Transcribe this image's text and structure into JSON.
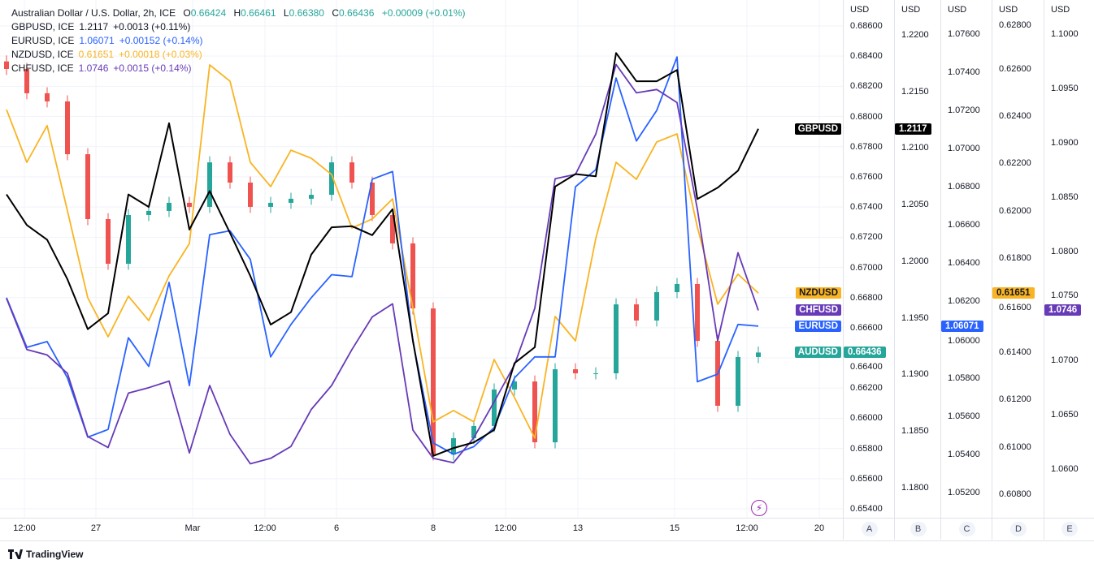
{
  "legend": {
    "main": {
      "title": "Australian Dollar / U.S. Dollar, 2h, ICE",
      "o_label": "O",
      "o": "0.66424",
      "h_label": "H",
      "h": "0.66461",
      "l_label": "L",
      "l": "0.66380",
      "c_label": "C",
      "c": "0.66436",
      "change": "+0.00009 (+0.01%)"
    },
    "overlays": [
      {
        "name": "GBPUSD, ICE",
        "value": "1.2117",
        "change": "+0.0013 (+0.11%)",
        "color": "#131722"
      },
      {
        "name": "EURUSD, ICE",
        "value": "1.06071",
        "change": "+0.00152 (+0.14%)",
        "color": "#2962ff"
      },
      {
        "name": "NZDUSD, ICE",
        "value": "0.61651",
        "change": "+0.00018 (+0.03%)",
        "color": "#f9b423"
      },
      {
        "name": "CHFUSD, ICE",
        "value": "1.0746",
        "change": "+0.0015 (+0.14%)",
        "color": "#673ab7"
      }
    ]
  },
  "colors": {
    "up": "#26a69a",
    "down": "#ef5350",
    "AUDUSD": "#26a69a",
    "GBPUSD": "#000000",
    "EURUSD": "#2962ff",
    "NZDUSD": "#f9b423",
    "CHFUSD": "#673ab7",
    "grid": "#f0f3fa"
  },
  "chart_data": {
    "type": "line",
    "main_series_type": "candlestick",
    "grid": true,
    "x_ticks": [
      "12:00",
      "27",
      "Mar",
      "12:00",
      "6",
      "8",
      "12:00",
      "13",
      "15",
      "12:00",
      "20"
    ],
    "axes": [
      {
        "id": "A",
        "unit": "USD",
        "series": "AUDUSD",
        "range": [
          0.65341,
          0.68772
        ],
        "ticks": [
          "0.68600",
          "0.68400",
          "0.68200",
          "0.68000",
          "0.67800",
          "0.67600",
          "0.67400",
          "0.67200",
          "0.67000",
          "0.66800",
          "0.66600",
          "0.66400",
          "0.66200",
          "0.66000",
          "0.65800",
          "0.65600",
          "0.65400"
        ]
      },
      {
        "id": "B",
        "unit": "USD",
        "series": "GBPUSD",
        "range": [
          1.17734,
          1.22308
        ],
        "ticks": [
          "1.2200",
          "1.2150",
          "1.2100",
          "1.2050",
          "1.2000",
          "1.1950",
          "1.1900",
          "1.1850",
          "1.1800"
        ]
      },
      {
        "id": "C",
        "unit": "USD",
        "series": "EURUSD",
        "range": [
          1.05068,
          1.07778
        ],
        "ticks": [
          "1.07600",
          "1.07400",
          "1.07200",
          "1.07000",
          "1.06800",
          "1.06600",
          "1.06400",
          "1.06200",
          "1.06000",
          "1.05800",
          "1.05600",
          "1.05400",
          "1.05200"
        ]
      },
      {
        "id": "D",
        "unit": "USD",
        "series": "NZDUSD",
        "range": [
          0.607,
          0.62892
        ],
        "ticks": [
          "0.62800",
          "0.62600",
          "0.62400",
          "0.62200",
          "0.62000",
          "0.61800",
          "0.61600",
          "0.61400",
          "0.61200",
          "0.61000",
          "0.60800"
        ]
      },
      {
        "id": "E",
        "unit": "USD",
        "series": "CHFUSD",
        "range": [
          1.05554,
          1.10313
        ],
        "ticks": [
          "1.1000",
          "1.0950",
          "1.0900",
          "1.0850",
          "1.0800",
          "1.0750",
          "1.0700",
          "1.0650",
          "1.0600"
        ]
      }
    ],
    "series": [
      {
        "name": "AUDUSD",
        "axis": "A",
        "last": "0.66436",
        "values": [
          0.68315,
          0.68154,
          0.681,
          0.6775,
          0.6732,
          0.67024,
          0.67347,
          0.67374,
          0.67428,
          0.67401,
          0.67696,
          0.67562,
          0.67401,
          0.67428,
          0.67455,
          0.67481,
          0.67696,
          0.67562,
          0.67347,
          0.67159,
          0.66728,
          0.6576,
          0.65868,
          0.65949,
          0.66191,
          0.66244,
          0.65841,
          0.66325,
          0.66298,
          0.66298,
          0.66755,
          0.66648,
          0.66836,
          0.6689,
          0.66513,
          0.66083,
          0.66406,
          0.66436
        ]
      },
      {
        "name": "GBPUSD",
        "axis": "B",
        "last": "1.2117",
        "values": [
          1.2059,
          1.2032,
          1.2019,
          1.1984,
          1.194,
          1.1954,
          1.2059,
          1.2048,
          1.2122,
          1.2028,
          1.2062,
          1.2025,
          1.1987,
          1.1944,
          1.1955,
          1.2006,
          1.203,
          1.2031,
          1.2023,
          1.2046,
          1.193,
          1.1828,
          1.1835,
          1.184,
          1.1851,
          1.191,
          1.1924,
          1.2066,
          1.2077,
          1.2075,
          1.2184,
          1.2159,
          1.2159,
          1.2169,
          1.2055,
          1.2065,
          1.208,
          1.2117
        ]
      },
      {
        "name": "EURUSD",
        "axis": "C",
        "last": "1.06071",
        "values": [
          1.0622,
          1.0596,
          1.0599,
          1.058,
          1.0549,
          1.0553,
          1.0601,
          1.0586,
          1.063,
          1.0576,
          1.0655,
          1.0657,
          1.0642,
          1.0591,
          1.0608,
          1.0622,
          1.0634,
          1.0633,
          1.0684,
          1.0688,
          1.0599,
          1.0546,
          1.054,
          1.0544,
          1.0554,
          1.058,
          1.0591,
          1.0591,
          1.068,
          1.0689,
          1.0737,
          1.0704,
          1.072,
          1.0748,
          1.0578,
          1.0582,
          1.0608,
          1.06071
        ]
      },
      {
        "name": "NZDUSD",
        "axis": "D",
        "last": "0.61651",
        "values": [
          0.62428,
          0.62205,
          0.6236,
          0.61999,
          0.61631,
          0.61466,
          0.61638,
          0.61535,
          0.61724,
          0.61861,
          0.62617,
          0.62548,
          0.62205,
          0.62102,
          0.62256,
          0.62222,
          0.62153,
          0.61927,
          0.61965,
          0.6205,
          0.61587,
          0.61106,
          0.61154,
          0.61106,
          0.6137,
          0.61209,
          0.61037,
          0.61552,
          0.61449,
          0.61882,
          0.62205,
          0.62133,
          0.62291,
          0.62325,
          0.6193,
          0.61604,
          0.61731,
          0.61651
        ]
      },
      {
        "name": "CHFUSD",
        "axis": "E",
        "last": "1.0746",
        "values": [
          1.0757,
          1.071,
          1.0705,
          1.0688,
          1.063,
          1.062,
          1.067,
          1.0675,
          1.0681,
          1.0615,
          1.0677,
          1.0632,
          1.0605,
          1.061,
          1.0621,
          1.0655,
          1.0677,
          1.071,
          1.074,
          1.0752,
          1.0636,
          1.061,
          1.0606,
          1.0629,
          1.0662,
          1.0696,
          1.0748,
          1.0867,
          1.0871,
          1.0908,
          1.0972,
          1.0946,
          1.0949,
          1.0937,
          1.0839,
          1.0718,
          1.0799,
          1.0746
        ]
      }
    ]
  },
  "series_labels": [
    "GBPUSD",
    "NZDUSD",
    "CHFUSD",
    "EURUSD",
    "AUDUSD"
  ],
  "axis_buttons": [
    "A",
    "B",
    "C",
    "D",
    "E"
  ],
  "footer": {
    "brand": "TradingView"
  },
  "icons": {
    "bolt": "lightning-icon",
    "logo": "tradingview-logo-icon"
  }
}
